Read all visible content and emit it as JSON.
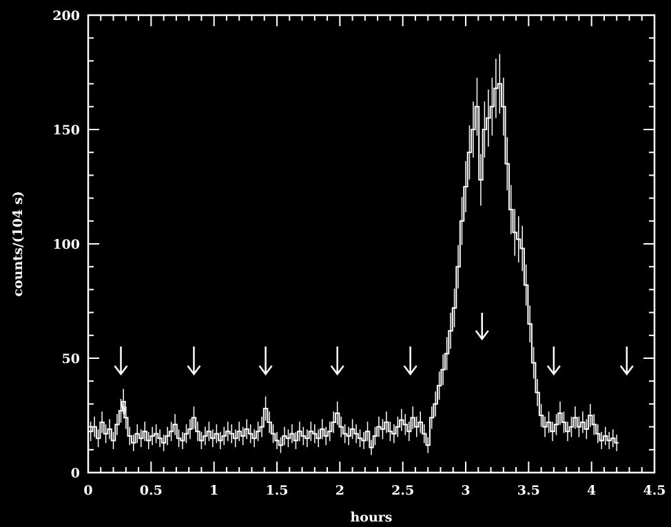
{
  "chart_data": {
    "type": "line",
    "xlabel": "hours",
    "ylabel": "counts/(104 s)",
    "xlim": [
      0,
      4.5
    ],
    "ylim": [
      0,
      200
    ],
    "x_ticks": [
      "0",
      "0.5",
      "1",
      "1.5",
      "2",
      "2.5",
      "3",
      "3.5",
      "4",
      "4.5"
    ],
    "y_ticks": [
      "0",
      "50",
      "100",
      "150",
      "200"
    ],
    "grid": false,
    "colors": {
      "background": "#000000",
      "foreground": "#ffffff"
    },
    "series": [
      {
        "x": [
          0.02,
          0.05,
          0.08,
          0.11,
          0.14,
          0.17,
          0.2,
          0.23,
          0.26,
          0.28,
          0.3,
          0.33,
          0.36,
          0.39,
          0.42,
          0.45,
          0.48,
          0.51,
          0.54,
          0.57,
          0.6,
          0.63,
          0.66,
          0.69,
          0.72,
          0.75,
          0.78,
          0.81,
          0.84,
          0.87,
          0.9,
          0.93,
          0.96,
          0.99,
          1.02,
          1.05,
          1.08,
          1.11,
          1.14,
          1.17,
          1.2,
          1.23,
          1.26,
          1.29,
          1.32,
          1.35,
          1.38,
          1.41,
          1.44,
          1.47,
          1.5,
          1.53,
          1.56,
          1.59,
          1.62,
          1.65,
          1.68,
          1.71,
          1.74,
          1.77,
          1.8,
          1.83,
          1.86,
          1.89,
          1.92,
          1.95,
          1.98,
          2.01,
          2.04,
          2.07,
          2.1,
          2.13,
          2.16,
          2.19,
          2.22,
          2.25,
          2.28,
          2.31,
          2.34,
          2.37,
          2.4,
          2.43,
          2.46,
          2.49,
          2.52,
          2.55,
          2.58,
          2.61,
          2.64,
          2.67,
          2.7,
          2.73,
          2.76,
          2.79,
          2.82,
          2.85,
          2.88,
          2.91,
          2.94,
          2.97,
          3.0,
          3.03,
          3.06,
          3.09,
          3.12,
          3.15,
          3.18,
          3.21,
          3.24,
          3.27,
          3.3,
          3.33,
          3.36,
          3.39,
          3.42,
          3.45,
          3.48,
          3.51,
          3.54,
          3.57,
          3.6,
          3.63,
          3.66,
          3.69,
          3.72,
          3.75,
          3.78,
          3.81,
          3.84,
          3.87,
          3.9,
          3.93,
          3.96,
          3.99,
          4.02,
          4.05,
          4.08,
          4.11,
          4.14,
          4.17,
          4.2
        ],
        "y": [
          18,
          20,
          15,
          22,
          17,
          19,
          14,
          21,
          27,
          31,
          24,
          16,
          13,
          17,
          15,
          18,
          14,
          16,
          17,
          15,
          13,
          16,
          18,
          21,
          15,
          14,
          17,
          19,
          24,
          18,
          14,
          16,
          18,
          15,
          17,
          14,
          16,
          18,
          17,
          15,
          18,
          16,
          19,
          17,
          15,
          18,
          20,
          28,
          22,
          17,
          14,
          12,
          16,
          15,
          17,
          14,
          18,
          16,
          15,
          18,
          17,
          15,
          19,
          16,
          18,
          22,
          26,
          20,
          17,
          16,
          19,
          17,
          15,
          14,
          18,
          11,
          16,
          20,
          19,
          22,
          18,
          17,
          20,
          23,
          21,
          18,
          24,
          20,
          22,
          17,
          12,
          24,
          30,
          38,
          45,
          52,
          62,
          72,
          90,
          110,
          125,
          140,
          150,
          160,
          128,
          150,
          155,
          160,
          168,
          170,
          160,
          135,
          115,
          105,
          102,
          98,
          82,
          65,
          48,
          35,
          25,
          20,
          22,
          18,
          21,
          26,
          22,
          18,
          20,
          24,
          20,
          22,
          19,
          25,
          21,
          17,
          14,
          16,
          14,
          15,
          13
        ]
      }
    ],
    "arrows_x": [
      0.26,
      0.84,
      1.41,
      1.98,
      2.56,
      3.13,
      3.7,
      4.28
    ]
  }
}
